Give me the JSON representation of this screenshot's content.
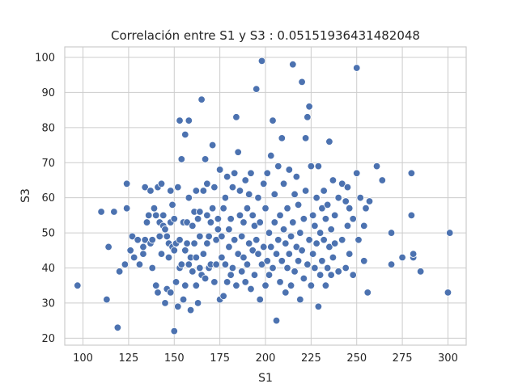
{
  "chart_data": {
    "type": "scatter",
    "title": "Correlación entre S1 y S3 : 0.05151936431482048",
    "xlabel": "S1",
    "ylabel": "S3",
    "xlim": [
      90,
      310
    ],
    "ylim": [
      18,
      103
    ],
    "xticks": [
      100,
      125,
      150,
      175,
      200,
      225,
      250,
      275,
      300
    ],
    "yticks": [
      20,
      30,
      40,
      50,
      60,
      70,
      80,
      90,
      100
    ],
    "grid": true,
    "color": "#4c72b0",
    "points": [
      [
        97,
        35
      ],
      [
        110,
        56
      ],
      [
        113,
        31
      ],
      [
        114,
        46
      ],
      [
        117,
        56
      ],
      [
        119,
        23
      ],
      [
        120,
        39
      ],
      [
        123,
        41
      ],
      [
        124,
        64
      ],
      [
        124,
        57
      ],
      [
        126,
        45
      ],
      [
        127,
        49
      ],
      [
        128,
        43
      ],
      [
        130,
        48
      ],
      [
        131,
        41
      ],
      [
        133,
        44
      ],
      [
        133,
        46
      ],
      [
        134,
        48
      ],
      [
        134,
        63
      ],
      [
        135,
        53
      ],
      [
        136,
        55
      ],
      [
        137,
        47
      ],
      [
        137,
        62
      ],
      [
        138,
        40
      ],
      [
        138,
        48
      ],
      [
        139,
        57
      ],
      [
        140,
        55
      ],
      [
        140,
        35
      ],
      [
        141,
        63
      ],
      [
        141,
        33
      ],
      [
        142,
        53
      ],
      [
        142,
        49
      ],
      [
        143,
        64
      ],
      [
        143,
        44
      ],
      [
        144,
        52
      ],
      [
        144,
        55
      ],
      [
        145,
        51
      ],
      [
        145,
        30
      ],
      [
        146,
        34
      ],
      [
        146,
        49
      ],
      [
        147,
        43
      ],
      [
        147,
        47
      ],
      [
        148,
        33
      ],
      [
        148,
        53
      ],
      [
        148,
        62
      ],
      [
        149,
        58
      ],
      [
        149,
        46
      ],
      [
        150,
        54
      ],
      [
        150,
        45
      ],
      [
        150,
        22
      ],
      [
        151,
        47
      ],
      [
        151,
        36
      ],
      [
        152,
        29
      ],
      [
        152,
        63
      ],
      [
        153,
        82
      ],
      [
        153,
        40
      ],
      [
        153,
        48
      ],
      [
        154,
        71
      ],
      [
        154,
        41
      ],
      [
        155,
        31
      ],
      [
        155,
        53
      ],
      [
        156,
        78
      ],
      [
        156,
        45
      ],
      [
        156,
        35
      ],
      [
        157,
        53
      ],
      [
        157,
        47
      ],
      [
        158,
        82
      ],
      [
        158,
        41
      ],
      [
        158,
        60
      ],
      [
        159,
        28
      ],
      [
        159,
        43
      ],
      [
        160,
        52
      ],
      [
        160,
        39
      ],
      [
        161,
        56
      ],
      [
        161,
        47
      ],
      [
        162,
        35
      ],
      [
        162,
        62
      ],
      [
        162,
        43
      ],
      [
        163,
        30
      ],
      [
        163,
        54
      ],
      [
        164,
        56
      ],
      [
        164,
        49
      ],
      [
        164,
        40
      ],
      [
        165,
        88
      ],
      [
        165,
        38
      ],
      [
        166,
        44
      ],
      [
        166,
        62
      ],
      [
        167,
        71
      ],
      [
        167,
        37
      ],
      [
        168,
        47
      ],
      [
        168,
        55
      ],
      [
        168,
        64
      ],
      [
        169,
        40
      ],
      [
        169,
        49
      ],
      [
        170,
        53
      ],
      [
        170,
        41
      ],
      [
        171,
        75
      ],
      [
        171,
        57
      ],
      [
        172,
        63
      ],
      [
        172,
        36
      ],
      [
        173,
        41
      ],
      [
        173,
        48
      ],
      [
        174,
        51
      ],
      [
        174,
        54
      ],
      [
        175,
        31
      ],
      [
        175,
        68
      ],
      [
        176,
        43
      ],
      [
        176,
        49
      ],
      [
        177,
        32
      ],
      [
        177,
        57
      ],
      [
        178,
        60
      ],
      [
        178,
        41
      ],
      [
        179,
        66
      ],
      [
        179,
        36
      ],
      [
        180,
        46
      ],
      [
        180,
        51
      ],
      [
        181,
        54
      ],
      [
        181,
        38
      ],
      [
        182,
        63
      ],
      [
        182,
        40
      ],
      [
        183,
        67
      ],
      [
        183,
        48
      ],
      [
        184,
        83
      ],
      [
        184,
        35
      ],
      [
        185,
        73
      ],
      [
        185,
        44
      ],
      [
        186,
        55
      ],
      [
        186,
        62
      ],
      [
        187,
        39
      ],
      [
        187,
        49
      ],
      [
        188,
        43
      ],
      [
        188,
        53
      ],
      [
        189,
        65
      ],
      [
        189,
        36
      ],
      [
        190,
        57
      ],
      [
        190,
        41
      ],
      [
        191,
        47
      ],
      [
        191,
        61
      ],
      [
        192,
        67
      ],
      [
        192,
        34
      ],
      [
        193,
        45
      ],
      [
        193,
        55
      ],
      [
        194,
        52
      ],
      [
        194,
        38
      ],
      [
        195,
        91
      ],
      [
        195,
        48
      ],
      [
        196,
        44
      ],
      [
        196,
        60
      ],
      [
        197,
        31
      ],
      [
        197,
        53
      ],
      [
        198,
        99
      ],
      [
        198,
        41
      ],
      [
        199,
        46
      ],
      [
        199,
        64
      ],
      [
        200,
        57
      ],
      [
        200,
        35
      ],
      [
        201,
        42
      ],
      [
        201,
        67
      ],
      [
        202,
        50
      ],
      [
        202,
        38
      ],
      [
        203,
        72
      ],
      [
        203,
        46
      ],
      [
        204,
        82
      ],
      [
        204,
        40
      ],
      [
        205,
        53
      ],
      [
        205,
        61
      ],
      [
        206,
        44
      ],
      [
        206,
        25
      ],
      [
        207,
        69
      ],
      [
        207,
        48
      ],
      [
        208,
        36
      ],
      [
        208,
        55
      ],
      [
        209,
        77
      ],
      [
        209,
        42
      ],
      [
        210,
        51
      ],
      [
        210,
        64
      ],
      [
        211,
        33
      ],
      [
        211,
        47
      ],
      [
        212,
        57
      ],
      [
        212,
        40
      ],
      [
        213,
        68
      ],
      [
        213,
        44
      ],
      [
        214,
        49
      ],
      [
        214,
        35
      ],
      [
        215,
        98
      ],
      [
        215,
        53
      ],
      [
        216,
        61
      ],
      [
        216,
        39
      ],
      [
        217,
        46
      ],
      [
        217,
        66
      ],
      [
        218,
        58
      ],
      [
        218,
        42
      ],
      [
        219,
        50
      ],
      [
        219,
        31
      ],
      [
        220,
        93
      ],
      [
        220,
        45
      ],
      [
        221,
        37
      ],
      [
        221,
        54
      ],
      [
        222,
        77
      ],
      [
        222,
        62
      ],
      [
        223,
        83
      ],
      [
        223,
        41
      ],
      [
        224,
        86
      ],
      [
        224,
        48
      ],
      [
        225,
        69
      ],
      [
        225,
        35
      ],
      [
        226,
        55
      ],
      [
        226,
        44
      ],
      [
        227,
        52
      ],
      [
        227,
        40
      ],
      [
        228,
        60
      ],
      [
        228,
        47
      ],
      [
        229,
        69
      ],
      [
        229,
        29
      ],
      [
        230,
        50
      ],
      [
        230,
        38
      ],
      [
        231,
        57
      ],
      [
        231,
        42
      ],
      [
        232,
        48
      ],
      [
        232,
        62
      ],
      [
        233,
        35
      ],
      [
        233,
        54
      ],
      [
        234,
        58
      ],
      [
        234,
        40
      ],
      [
        235,
        76
      ],
      [
        235,
        46
      ],
      [
        236,
        51
      ],
      [
        236,
        38
      ],
      [
        237,
        65
      ],
      [
        237,
        43
      ],
      [
        238,
        47
      ],
      [
        238,
        55
      ],
      [
        240,
        60
      ],
      [
        240,
        39
      ],
      [
        242,
        64
      ],
      [
        242,
        48
      ],
      [
        244,
        59
      ],
      [
        244,
        40
      ],
      [
        245,
        63
      ],
      [
        245,
        52
      ],
      [
        246,
        57
      ],
      [
        246,
        44
      ],
      [
        248,
        54
      ],
      [
        248,
        38
      ],
      [
        250,
        67
      ],
      [
        250,
        97
      ],
      [
        251,
        48
      ],
      [
        252,
        60
      ],
      [
        254,
        52
      ],
      [
        254,
        42
      ],
      [
        255,
        57
      ],
      [
        256,
        33
      ],
      [
        257,
        59
      ],
      [
        261,
        69
      ],
      [
        264,
        65
      ],
      [
        269,
        50
      ],
      [
        269,
        41
      ],
      [
        275,
        43
      ],
      [
        280,
        67
      ],
      [
        280,
        55
      ],
      [
        281,
        43
      ],
      [
        281,
        44
      ],
      [
        285,
        39
      ],
      [
        300,
        33
      ],
      [
        301,
        50
      ]
    ]
  }
}
